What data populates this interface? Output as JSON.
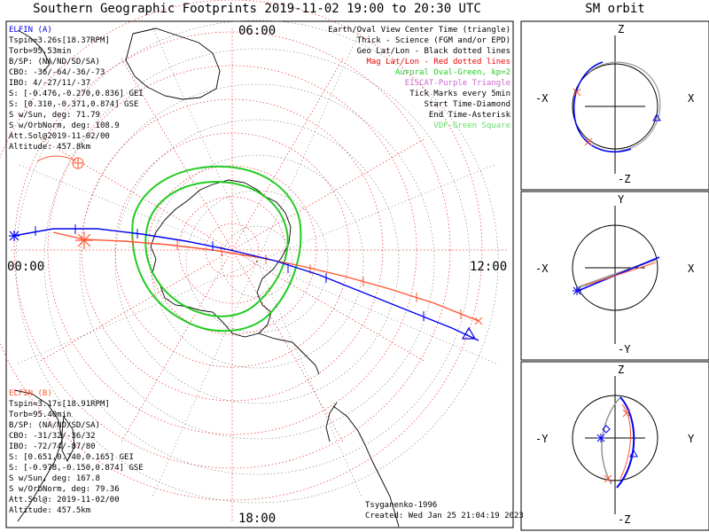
{
  "title": "Southern Geographic Footprints 2019-11-02 19:00 to 20:30 UTC",
  "sm_title": "SM orbit",
  "elfin_a": {
    "name": "ELFIN (A)",
    "lines": [
      "Tspin=3.26s[18.37RPM]",
      "Torb=95.53min",
      "B/SP: (NA/ND/SD/SA)",
      "CBO: -36/-64/-36/-73",
      "IBO: 4/-27/11/-37",
      "S: [-0.476,-0.270,0.836] GEI",
      "S: [0.310,-0.371,0.874] GSE",
      "S w/Sun, deg: 71.79",
      "S w/OrbNorm, deg: 108.9",
      "Att.Sol@2019-11-02/00",
      "Altitude: 457.8km"
    ],
    "color": "#0000ee"
  },
  "elfin_b": {
    "name": "ELFIN (B)",
    "lines": [
      "Tspin=3.17s[18.91RPM]",
      "Torb=95.40min",
      "B/SP: (NA/ND/SD/SA)",
      "CBO: -31/32/-36/32",
      "IBO: -72/74/-87/80",
      "S: [0.651,0.740,0.165] GEI",
      "S: [-0.978,-0.150,0.874] GSE",
      "S w/Sun, deg: 167.8",
      "S w/OrbNorm, deg: 79.36",
      "Att.Sol@: 2019-11-02/00",
      "Altitude: 457.5km"
    ],
    "color": "#ff5533"
  },
  "legend": [
    {
      "text": "Earth/Oval View Center Time (triangle)",
      "color": "#000000"
    },
    {
      "text": "Thick - Science (FGM and/or EPD)",
      "color": "#000000"
    },
    {
      "text": "Geo Lat/Lon - Black dotted lines",
      "color": "#000000"
    },
    {
      "text": "Mag Lat/Lon - Red dotted lines",
      "color": "#ee0000"
    },
    {
      "text": "Auroral Oval-Green, kp=2",
      "color": "#22cc22"
    },
    {
      "text": "EISCAT-Purple Triangle",
      "color": "#cc66cc"
    },
    {
      "text": "Tick Marks every 5min",
      "color": "#000000"
    },
    {
      "text": "Start Time-Diamond",
      "color": "#000000"
    },
    {
      "text": "End Time-Asterisk",
      "color": "#000000"
    },
    {
      "text": "VDF-Green Square",
      "color": "#66dd66"
    }
  ],
  "mlt_labels": {
    "top": "06:00",
    "left": "00:00",
    "right": "12:00",
    "bottom": "18:00"
  },
  "model": "Tsyganenko-1996",
  "created": "Created: Wed Jan 25 21:04:19 2023",
  "sm_panels": [
    {
      "top": "Z",
      "bottom": "-Z",
      "left": "-X",
      "right": "X"
    },
    {
      "top": "Y",
      "bottom": "-Y",
      "left": "-X",
      "right": "X"
    },
    {
      "top": "Z",
      "bottom": "-Z",
      "left": "-Y",
      "right": "Y"
    }
  ]
}
